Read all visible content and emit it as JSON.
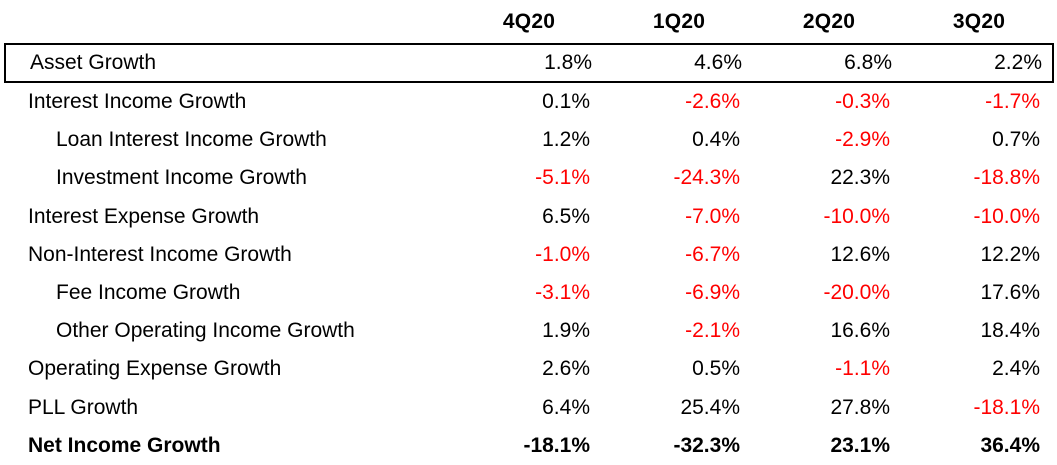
{
  "colors": {
    "text": "#000000",
    "negative": "#FF0000",
    "row_box_border": "#000000",
    "background": "#FFFFFF"
  },
  "table": {
    "column_headers": [
      "4Q20",
      "1Q20",
      "2Q20",
      "3Q20"
    ],
    "rows": [
      {
        "label": "Asset Growth",
        "indent": false,
        "bold": false,
        "boxed": true,
        "values": [
          "1.8%",
          "4.6%",
          "6.8%",
          "2.2%"
        ]
      },
      {
        "label": "Interest Income Growth",
        "indent": false,
        "bold": false,
        "boxed": false,
        "values": [
          "0.1%",
          "-2.6%",
          "-0.3%",
          "-1.7%"
        ]
      },
      {
        "label": "Loan Interest Income Growth",
        "indent": true,
        "bold": false,
        "boxed": false,
        "values": [
          "1.2%",
          "0.4%",
          "-2.9%",
          "0.7%"
        ]
      },
      {
        "label": "Investment Income Growth",
        "indent": true,
        "bold": false,
        "boxed": false,
        "values": [
          "-5.1%",
          "-24.3%",
          "22.3%",
          "-18.8%"
        ]
      },
      {
        "label": "Interest Expense Growth",
        "indent": false,
        "bold": false,
        "boxed": false,
        "values": [
          "6.5%",
          "-7.0%",
          "-10.0%",
          "-10.0%"
        ]
      },
      {
        "label": "Non-Interest Income Growth",
        "indent": false,
        "bold": false,
        "boxed": false,
        "values": [
          "-1.0%",
          "-6.7%",
          "12.6%",
          "12.2%"
        ]
      },
      {
        "label": "Fee Income Growth",
        "indent": true,
        "bold": false,
        "boxed": false,
        "values": [
          "-3.1%",
          "-6.9%",
          "-20.0%",
          "17.6%"
        ]
      },
      {
        "label": "Other Operating Income Growth",
        "indent": true,
        "bold": false,
        "boxed": false,
        "values": [
          "1.9%",
          "-2.1%",
          "16.6%",
          "18.4%"
        ]
      },
      {
        "label": "Operating Expense Growth",
        "indent": false,
        "bold": false,
        "boxed": false,
        "values": [
          "2.6%",
          "0.5%",
          "-1.1%",
          "2.4%"
        ]
      },
      {
        "label": "PLL Growth",
        "indent": false,
        "bold": false,
        "boxed": false,
        "values": [
          "6.4%",
          "25.4%",
          "27.8%",
          "-18.1%"
        ]
      },
      {
        "label": "Net Income Growth",
        "indent": false,
        "bold": true,
        "boxed": false,
        "values": [
          "-18.1%",
          "-32.3%",
          "23.1%",
          "36.4%"
        ]
      }
    ],
    "style_note": "negative values rendered in red, except in the bold Net Income Growth total row where all values are black"
  },
  "chart_data": {
    "type": "table",
    "title": "",
    "columns": [
      "4Q20",
      "1Q20",
      "2Q20",
      "3Q20"
    ],
    "row_labels": [
      "Asset Growth",
      "Interest Income Growth",
      "Loan Interest Income Growth",
      "Investment Income Growth",
      "Interest Expense Growth",
      "Non-Interest Income Growth",
      "Fee Income Growth",
      "Other Operating Income Growth",
      "Operating Expense Growth",
      "PLL Growth",
      "Net Income Growth"
    ],
    "values_pct": [
      [
        1.8,
        4.6,
        6.8,
        2.2
      ],
      [
        0.1,
        -2.6,
        -0.3,
        -1.7
      ],
      [
        1.2,
        0.4,
        -2.9,
        0.7
      ],
      [
        -5.1,
        -24.3,
        22.3,
        -18.8
      ],
      [
        6.5,
        -7.0,
        -10.0,
        -10.0
      ],
      [
        -1.0,
        -6.7,
        12.6,
        12.2
      ],
      [
        -3.1,
        -6.9,
        -20.0,
        17.6
      ],
      [
        1.9,
        -2.1,
        16.6,
        18.4
      ],
      [
        2.6,
        0.5,
        -1.1,
        2.4
      ],
      [
        6.4,
        25.4,
        27.8,
        -18.1
      ],
      [
        -18.1,
        -32.3,
        23.1,
        36.4
      ]
    ]
  }
}
